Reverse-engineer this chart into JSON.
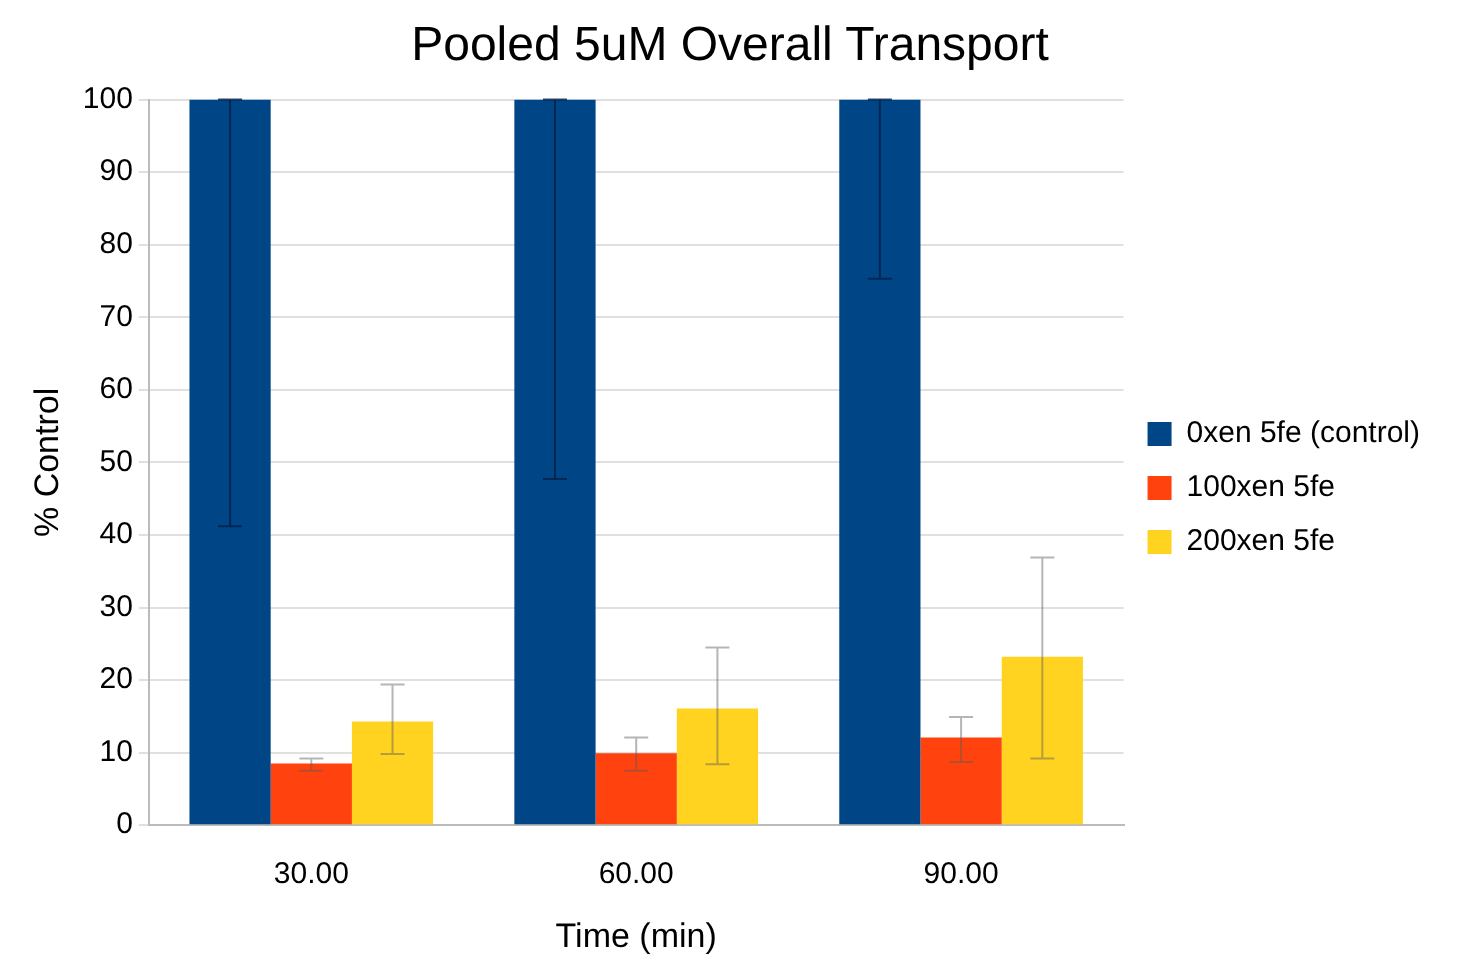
{
  "chart_data": {
    "type": "bar",
    "title": "Pooled 5uM Overall Transport",
    "xlabel": "Time (min)",
    "ylabel": "% Control",
    "categories": [
      "30.00",
      "60.00",
      "90.00"
    ],
    "series": [
      {
        "name": "0xen 5fe (control)",
        "color": "#004586",
        "values": [
          100,
          100,
          100
        ],
        "errors": [
          [
            41.2,
            100
          ],
          [
            47.7,
            100
          ],
          [
            75.3,
            100
          ]
        ]
      },
      {
        "name": "100xen 5fe",
        "color": "#ff420e",
        "values": [
          8.5,
          9.9,
          12.1
        ],
        "errors": [
          [
            7.5,
            9.2
          ],
          [
            7.5,
            12.1
          ],
          [
            8.7,
            14.9
          ]
        ]
      },
      {
        "name": "200xen 5fe",
        "color": "#ffd320",
        "values": [
          14.3,
          16.1,
          23.2
        ],
        "errors": [
          [
            9.8,
            19.4
          ],
          [
            8.4,
            24.5
          ],
          [
            9.2,
            36.9
          ]
        ]
      }
    ],
    "ylim": [
      0,
      100
    ],
    "yticks": [
      0,
      10,
      20,
      30,
      40,
      50,
      60,
      70,
      80,
      90,
      100
    ],
    "grid": "y",
    "legend": "right"
  }
}
